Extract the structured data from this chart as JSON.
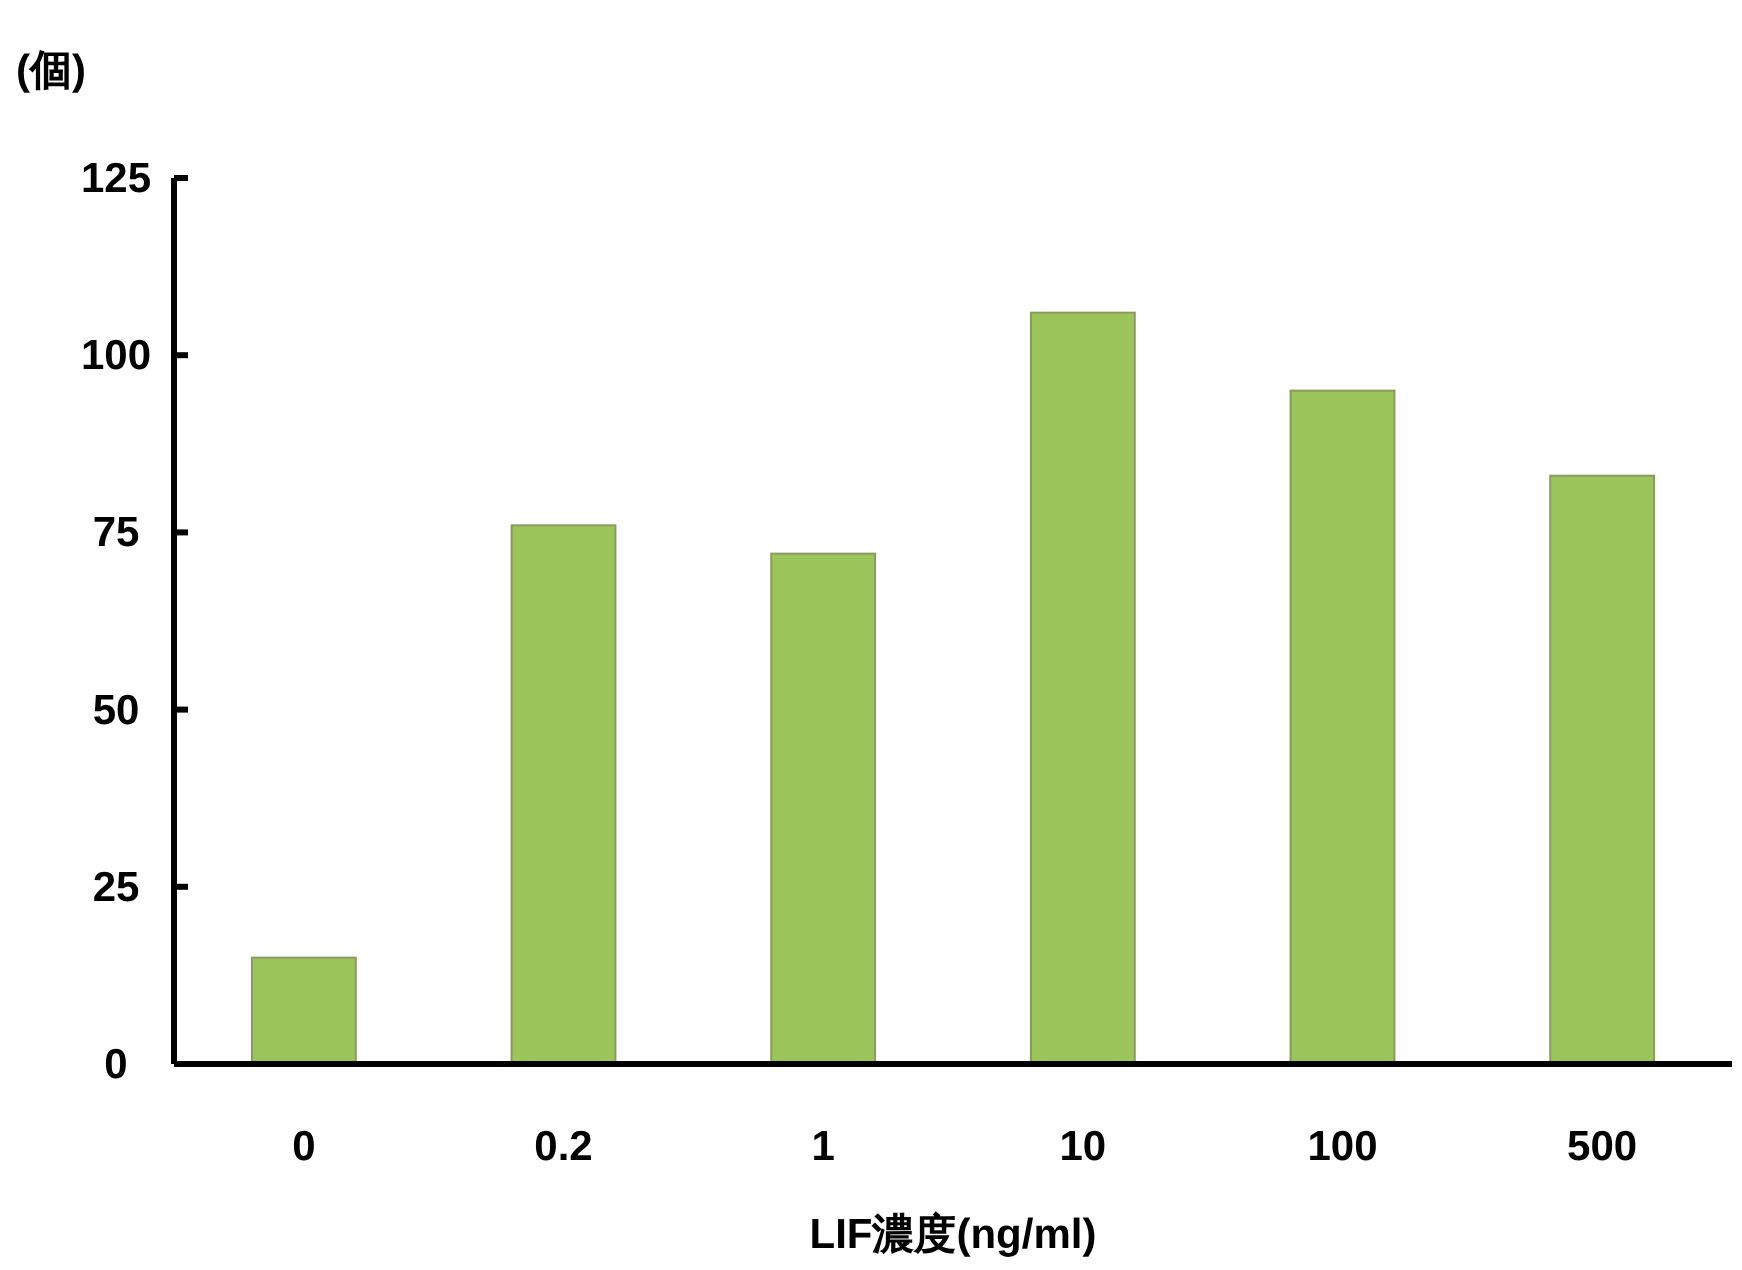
{
  "chart_data": {
    "type": "bar",
    "ylabel": "(個)",
    "xlabel": "LIF濃度(ng/ml)",
    "categories": [
      "0",
      "0.2",
      "1",
      "10",
      "100",
      "500"
    ],
    "values": [
      15,
      76,
      72,
      106,
      95,
      83
    ],
    "color": "#9bc45a",
    "ylim": [
      0,
      125
    ],
    "yticks": [
      0,
      25,
      50,
      75,
      100,
      125
    ],
    "grid": false
  }
}
